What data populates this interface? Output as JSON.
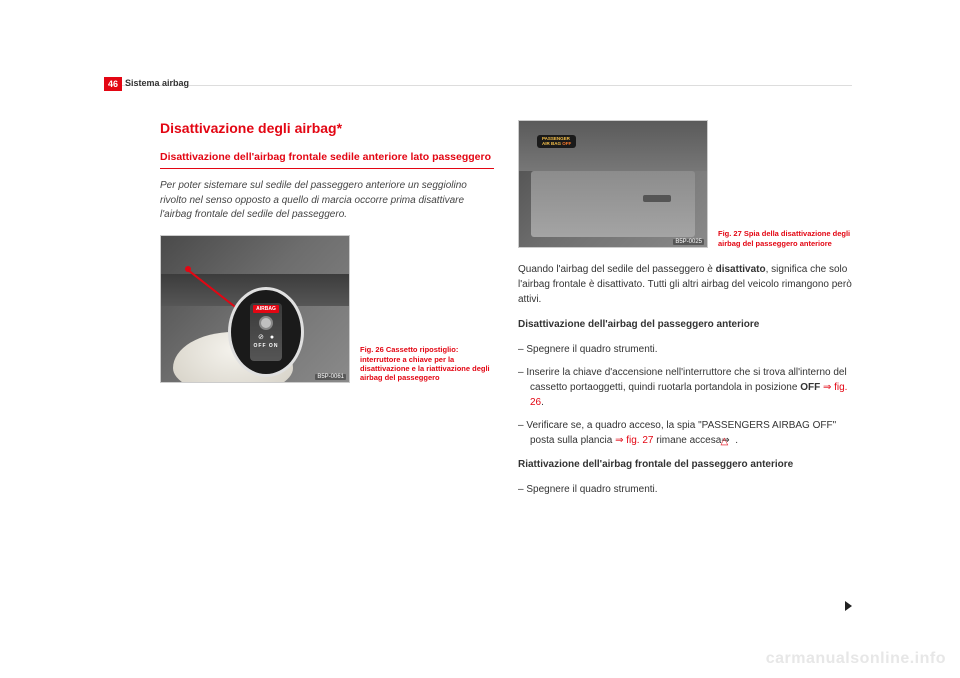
{
  "colors": {
    "accent": "#e30613",
    "text": "#333333",
    "muted": "#444444",
    "watermark": "#e7e7e7",
    "rule": "#dddddd"
  },
  "typography": {
    "body_fontsize_pt": 10,
    "caption_fontsize_pt": 7.5,
    "title_fontsize_pt": 14,
    "subhead_fontsize_pt": 10.5,
    "header_fontsize_pt": 9,
    "watermark_fontsize_pt": 16
  },
  "page": {
    "number": "46",
    "header": "Sistema airbag"
  },
  "left": {
    "section_title": "Disattivazione degli airbag*",
    "subhead": "Disattivazione dell'airbag frontale sedile anteriore lato passeggero",
    "intro": "Per poter sistemare sul sedile del passeggero anteriore un seggiolino rivolto nel senso opposto a quello di marcia occorre prima disattivare l'airbag frontale del sedile del passeggero.",
    "fig26": {
      "label": "B5P-0061",
      "switch_top": "AIRBAG",
      "switch_offon": "OFF  ON",
      "caption": "Fig. 26   Cassetto riposti­glio: interruttore a chiave per la disattivazione e la riattivazione degli airbag del passeggero"
    }
  },
  "right": {
    "fig27": {
      "label": "B5P-0025",
      "pill_line1": "PASSENGER",
      "pill_line2": "AIR BAG ",
      "pill_off": "OFF",
      "caption": "Fig. 27   Spia della disatti­vazione degli airbag del passeggero anteriore"
    },
    "para1_a": "Quando l'airbag del sedile del passeggero è ",
    "para1_b": "disattivato",
    "para1_c": ", significa che solo l'airbag frontale è disattivato. Tutti gli altri airbag del veicolo rimangono però attivi.",
    "heading1": "Disattivazione dell'airbag del passeggero anteriore",
    "step1": "Spegnere il quadro strumenti.",
    "step2_a": "Inserire la chiave d'accensione nell'interruttore che si trova all'interno del cassetto portaoggetti, quindi ruotarla portandola in posizione ",
    "step2_b": "OFF",
    "step2_c": " ⇒ fig. 26",
    "step2_d": ".",
    "step3_a": "Verificare se, a quadro acceso, la spia \"PASSENGERS AIRBAG OFF\" posta sulla plancia ",
    "step3_b": "⇒ fig. 27",
    "step3_c": " rimane accesa⇒ ",
    "step3_d": " .",
    "heading2": "Riattivazione dell'airbag frontale del passeggero anteriore",
    "step4": "Spegnere il quadro strumenti."
  },
  "watermark": "carmanualsonline.info"
}
